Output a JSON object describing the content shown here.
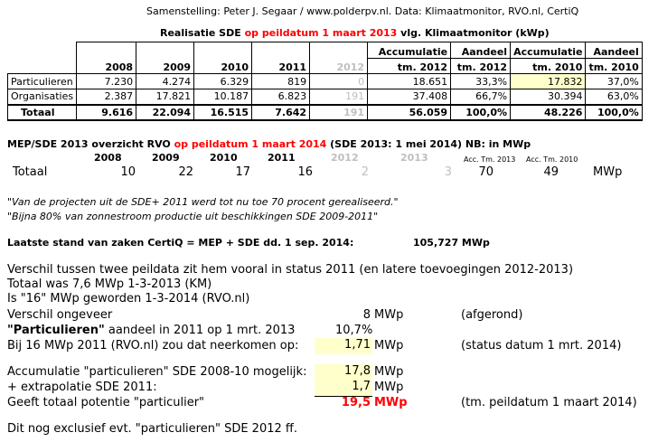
{
  "source_line": "Samenstelling: Peter J. Segaar / www.polderpv.nl. Data: Klimaatmonitor, RVO.nl, CertiQ",
  "table1": {
    "title_pre": "Realisatie SDE ",
    "title_red": "op peildatum 1 maart 2013",
    "title_post": " vlg. Klimaatmonitor (kWp)",
    "header_years": [
      "2008",
      "2009",
      "2010",
      "2011",
      "2012"
    ],
    "header_acc1_line1": "Accumulatie",
    "header_acc1_line2": "tm. 2012",
    "header_aandeel1_line1": "Aandeel",
    "header_aandeel1_line2": "tm. 2012",
    "header_acc2_line1": "Accumulatie",
    "header_acc2_line2": "tm. 2010",
    "header_aandeel2_line1": "Aandeel",
    "header_aandeel2_line2": "tm. 2010",
    "rows": [
      {
        "label": "Particulieren",
        "values": [
          "7.230",
          "4.274",
          "6.329",
          "819",
          "0"
        ],
        "acc1": "18.651",
        "aandeel1": "33,3%",
        "acc2": "17.832",
        "aandeel2": "37,0%"
      },
      {
        "label": "Organisaties",
        "values": [
          "2.387",
          "17.821",
          "10.187",
          "6.823",
          "191"
        ],
        "acc1": "37.408",
        "aandeel1": "66,7%",
        "acc2": "30.394",
        "aandeel2": "63,0%"
      },
      {
        "label": "Totaal",
        "values": [
          "9.616",
          "22.094",
          "16.515",
          "7.642",
          "191"
        ],
        "acc1": "56.059",
        "aandeel1": "100,0%",
        "acc2": "48.226",
        "aandeel2": "100,0%"
      }
    ]
  },
  "mep": {
    "title_pre": "MEP/SDE 2013 overzicht RVO ",
    "title_red": "op peildatum 1 maart 2014",
    "title_post": " (SDE 2013: 1 mei 2014) NB: in MWp",
    "years": [
      "2008",
      "2009",
      "2010",
      "2011",
      "2012",
      "2013"
    ],
    "acc_label_1": "Acc. Tm. 2013",
    "acc_label_2": "Acc. Tm. 2010",
    "row_label": "Totaal",
    "values": [
      "10",
      "22",
      "17",
      "16",
      "2",
      "3"
    ],
    "acc1": "70",
    "acc2": "49",
    "unit": "MWp"
  },
  "quotes": [
    "\"Van de projecten uit de SDE+ 2011 werd tot nu toe 70 procent gerealiseerd.\"",
    "\"Bijna 80% van zonnestroom productie uit beschikkingen SDE 2009-2011\""
  ],
  "certiq": {
    "label": "Laatste stand van zaken CertiQ = MEP + SDE dd. 1 sep. 2014:",
    "value": "105,727 MWp"
  },
  "analysis": {
    "line1": "Verschil tussen twee peildata zit hem vooral in status 2011 (en latere toevoegingen 2012-2013)",
    "line2": "Totaal was 7,6 MWp 1-3-2013 (KM)",
    "line3": "Is \"16\" MWp geworden 1-3-2014 (RVO.nl)",
    "verschil_label": "Verschil ongeveer",
    "verschil_value": "8",
    "verschil_unit": "MWp",
    "verschil_note": "(afgerond)",
    "part_label_bold": "\"Particulieren\"",
    "part_label_rest": " aandeel in 2011 op 1 mrt. 2013",
    "part_value": "10,7%",
    "bij_label": "Bij 16 MWp 2011 (RVO.nl) zou dat neerkomen op:",
    "bij_value": "1,71",
    "bij_unit": "MWp",
    "bij_note": "(status datum 1 mrt. 2014)",
    "acc_label": "Accumulatie \"particulieren\" SDE 2008-10  mogelijk:",
    "acc_value": "17,8",
    "acc_unit": "MWp",
    "extra_label": "+ extrapolatie SDE 2011:",
    "extra_value": "1,7",
    "extra_unit": "MWp",
    "geeft_label": "Geeft totaal potentie \"particulier\"",
    "geeft_value": "19,5",
    "geeft_unit": "MWp",
    "geeft_note": "(tm. peildatum 1 maart 2014)",
    "footer": "Dit nog exclusief evt. \"particulieren\" SDE 2012 ff."
  }
}
